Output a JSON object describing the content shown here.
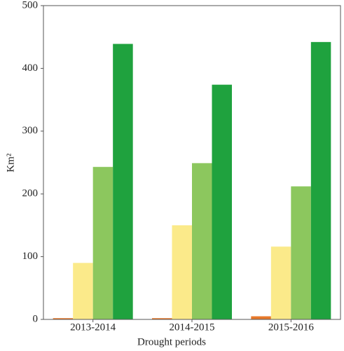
{
  "chart_data": {
    "type": "bar",
    "x_label": "Drought periods",
    "y_label": "Km²",
    "categories": [
      "2013-2014",
      "2014-2015",
      "2015-2016"
    ],
    "series": [
      {
        "color": "#e8792a",
        "values": [
          2,
          2,
          5
        ]
      },
      {
        "color": "#fbea8a",
        "values": [
          90,
          150,
          116
        ]
      },
      {
        "color": "#8cc75e",
        "values": [
          243,
          249,
          212
        ]
      },
      {
        "color": "#1fa23e",
        "values": [
          439,
          374,
          442
        ]
      }
    ],
    "ylim": [
      0,
      500
    ],
    "yticks": [
      0,
      100,
      200,
      300,
      400,
      500
    ]
  }
}
